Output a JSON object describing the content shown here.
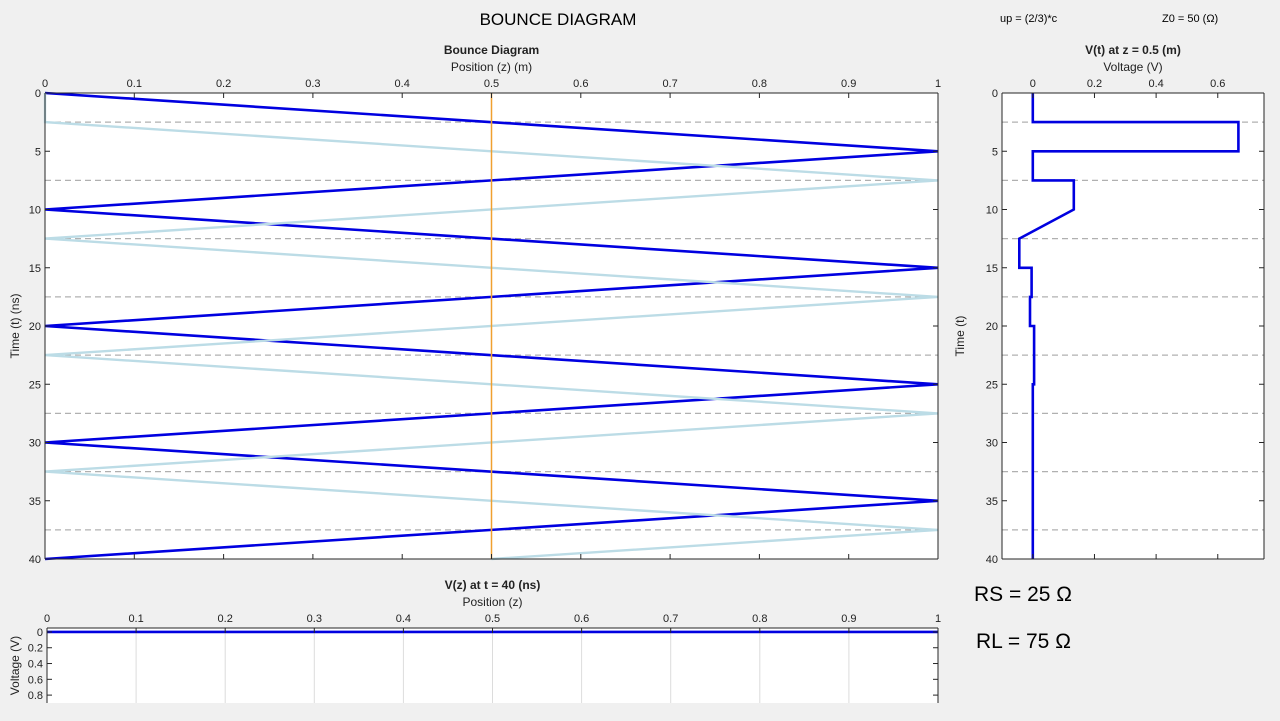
{
  "header": {
    "title": "BOUNCE DIAGRAM",
    "speed_note": "up = (2/3)*c",
    "impedance_note": "Z0 = 50 (Ω)"
  },
  "params": {
    "rs_label": "RS = 25 Ω",
    "rl_label": "RL = 75 Ω"
  },
  "colors": {
    "forward": "#0000e0",
    "reflected": "#bcdce6",
    "marker": "#f0a030",
    "dashed": "#b0b0b0"
  },
  "chart_data": [
    {
      "id": "bounce",
      "type": "line",
      "title": "Bounce Diagram",
      "xlabel": "Position (z) (m)",
      "ylabel": "Time (t) (ns)",
      "xlim": [
        0,
        1
      ],
      "ylim": [
        0,
        40
      ],
      "y_reversed": true,
      "x_axis_location": "top",
      "xticks": [
        0,
        0.1,
        0.2,
        0.3,
        0.4,
        0.5,
        0.6,
        0.7,
        0.8,
        0.9,
        1
      ],
      "yticks": [
        0,
        5,
        10,
        15,
        20,
        25,
        30,
        35,
        40
      ],
      "series": [
        {
          "role": "forward",
          "x": [
            0,
            1,
            0,
            1,
            0,
            1,
            0,
            1,
            0
          ],
          "y": [
            0,
            5,
            10,
            15,
            20,
            25,
            30,
            35,
            40
          ]
        },
        {
          "role": "reflected",
          "x": [
            0,
            0,
            1,
            0,
            1,
            0,
            1,
            0,
            1,
            0.5
          ],
          "y": [
            0,
            2.5,
            7.5,
            12.5,
            17.5,
            22.5,
            27.5,
            32.5,
            37.5,
            40
          ]
        }
      ],
      "marker_x": 0.5,
      "dashed_times": [
        2.5,
        7.5,
        12.5,
        17.5,
        22.5,
        27.5,
        32.5,
        37.5
      ]
    },
    {
      "id": "vt",
      "type": "line",
      "title": "V(t) at z = 0.5 (m)",
      "xlabel": "Voltage (V)",
      "ylabel": "Time (t)",
      "xlim": [
        -0.1,
        0.75
      ],
      "ylim": [
        0,
        40
      ],
      "y_reversed": true,
      "x_axis_location": "top",
      "xticks": [
        0,
        0.2,
        0.4,
        0.6
      ],
      "yticks": [
        0,
        5,
        10,
        15,
        20,
        25,
        30,
        35,
        40
      ],
      "series": [
        {
          "x": [
            0,
            0,
            0.667,
            0.667,
            0,
            0,
            0.133,
            0.133,
            -0.044,
            -0.044,
            -0.004,
            -0.004,
            -0.009,
            -0.009,
            0.004,
            0.004,
            0,
            0
          ],
          "y": [
            0,
            2.5,
            2.5,
            5,
            5,
            7.5,
            7.5,
            10,
            12.5,
            15,
            15,
            17.5,
            17.5,
            20,
            20,
            25,
            25,
            40
          ]
        }
      ],
      "dashed_times": [
        2.5,
        7.5,
        12.5,
        17.5,
        22.5,
        27.5,
        32.5,
        37.5
      ]
    },
    {
      "id": "vz",
      "type": "line",
      "title": "V(z) at t = 40 (ns)",
      "xlabel": "Position (z)",
      "ylabel": "Voltage (V)",
      "xlim": [
        0,
        1
      ],
      "ylim": [
        -0.05,
        0.9
      ],
      "y_reversed": true,
      "x_axis_location": "top",
      "xticks": [
        0,
        0.1,
        0.2,
        0.3,
        0.4,
        0.5,
        0.6,
        0.7,
        0.8,
        0.9,
        1
      ],
      "yticks": [
        0,
        0.2,
        0.4,
        0.6,
        0.8
      ],
      "grid": true,
      "series": [
        {
          "x": [
            0,
            1
          ],
          "y": [
            0,
            0
          ]
        }
      ]
    }
  ]
}
